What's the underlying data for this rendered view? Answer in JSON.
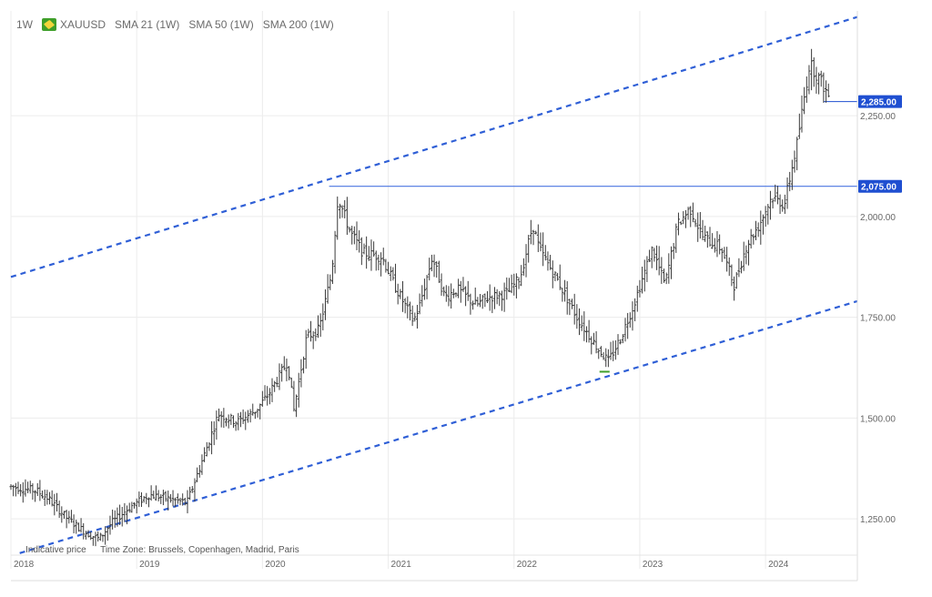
{
  "header": {
    "timeframe": "1W",
    "symbol": "XAUUSD",
    "indicators": [
      "SMA 21 (1W)",
      "SMA 50 (1W)",
      "SMA 200 (1W)"
    ],
    "symbol_icon": "gold-bar-icon",
    "symbol_icon_color": "#3f9f2a"
  },
  "footer": {
    "note": "Indicative price",
    "timezone": "Time Zone: Brussels, Copenhagen, Madrid, Paris"
  },
  "colors": {
    "candle": "#3a3a3a",
    "trendline": "#2f5fd6",
    "resistance": "#4a74e0",
    "price_label_bg": "#1f4fd1",
    "grid": "#ececec",
    "axis_text": "#666666",
    "low_marker": "#3f9f2a"
  },
  "chart_data": {
    "type": "line",
    "title": "",
    "xlabel": "",
    "ylabel": "",
    "x_ticks": [
      "2018",
      "2019",
      "2020",
      "2021",
      "2022",
      "2023",
      "2024"
    ],
    "y_ticks": [
      "1,250.00",
      "1,500.00",
      "1,750.00",
      "2,000.00",
      "2,250.00"
    ],
    "ylim": [
      1160,
      2510
    ],
    "xlim": [
      2018.0,
      2024.73
    ],
    "grid": true,
    "price_labels": [
      {
        "value": 2285,
        "text": "2,285.00"
      },
      {
        "value": 2075,
        "text": "2,075.00"
      }
    ],
    "horizontal_level": 2075,
    "upper_channel": [
      {
        "x": 2018.0,
        "y": 1850
      },
      {
        "x": 2024.73,
        "y": 2495
      }
    ],
    "lower_channel": [
      {
        "x": 2018.07,
        "y": 1165
      },
      {
        "x": 2024.73,
        "y": 1790
      }
    ],
    "series": [
      {
        "values_x": [
          2018.0,
          2018.1,
          2018.2,
          2018.3,
          2018.45,
          2018.6,
          2018.7,
          2018.8,
          2018.95,
          2019.1,
          2019.25,
          2019.4,
          2019.55,
          2019.65,
          2019.8,
          2019.95,
          2020.05,
          2020.2,
          2020.25,
          2020.35,
          2020.45,
          2020.55,
          2020.6,
          2020.7,
          2020.8,
          2020.95,
          2021.05,
          2021.2,
          2021.25,
          2021.35,
          2021.45,
          2021.55,
          2021.7,
          2021.8,
          2021.95,
          2022.05,
          2022.15,
          2022.2,
          2022.35,
          2022.5,
          2022.65,
          2022.75,
          2022.85,
          2022.95,
          2023.1,
          2023.2,
          2023.3,
          2023.4,
          2023.5,
          2023.65,
          2023.75,
          2023.85,
          2023.95,
          2024.05,
          2024.15,
          2024.25,
          2024.35,
          2024.45,
          2024.5
        ],
        "values": [
          1330,
          1325,
          1320,
          1300,
          1250,
          1215,
          1200,
          1240,
          1280,
          1310,
          1300,
          1290,
          1420,
          1510,
          1490,
          1520,
          1560,
          1640,
          1520,
          1700,
          1720,
          1860,
          2050,
          1960,
          1910,
          1900,
          1830,
          1740,
          1780,
          1900,
          1800,
          1820,
          1780,
          1800,
          1810,
          1850,
          1980,
          1920,
          1840,
          1750,
          1680,
          1640,
          1700,
          1780,
          1920,
          1830,
          1980,
          2020,
          1950,
          1920,
          1830,
          1930,
          1980,
          2050,
          2030,
          2180,
          2380,
          2330,
          2300
        ]
      }
    ]
  }
}
